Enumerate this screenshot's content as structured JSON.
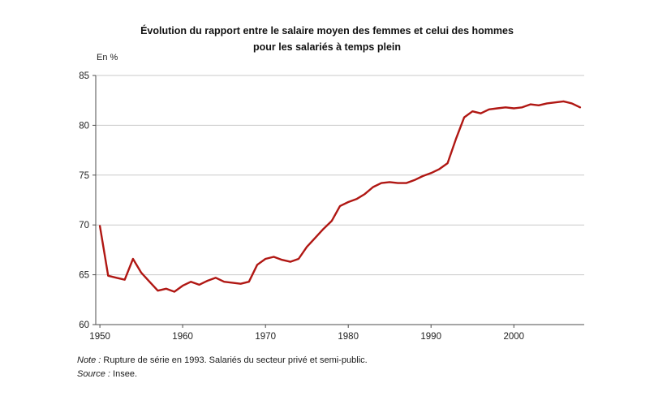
{
  "title": {
    "line1": "Évolution du rapport entre le salaire moyen des femmes et celui des hommes",
    "line2": "pour les salariés à temps plein"
  },
  "chart_data": {
    "type": "line",
    "title": "Évolution du rapport entre le salaire moyen des femmes et celui des hommes pour les salariés à temps plein",
    "unit_label": "En %",
    "ylabel": "En %",
    "xlabel": "",
    "ylim": [
      60,
      85
    ],
    "yticks": [
      60,
      65,
      70,
      75,
      80,
      85
    ],
    "xticks": [
      1950,
      1960,
      1970,
      1980,
      1990,
      2000
    ],
    "xlim": [
      1949.5,
      2008.5
    ],
    "grid": true,
    "legend_position": "none",
    "line_color": "#b01713",
    "axis_color": "#4d4d4d",
    "grid_color": "#c9c9c9",
    "x": [
      1950,
      1951,
      1952,
      1953,
      1954,
      1955,
      1956,
      1957,
      1958,
      1959,
      1960,
      1961,
      1962,
      1963,
      1964,
      1965,
      1966,
      1967,
      1968,
      1969,
      1970,
      1971,
      1972,
      1973,
      1974,
      1975,
      1976,
      1977,
      1978,
      1979,
      1980,
      1981,
      1982,
      1983,
      1984,
      1985,
      1986,
      1987,
      1988,
      1989,
      1990,
      1991,
      1992,
      1993,
      1994,
      1995,
      1996,
      1997,
      1998,
      1999,
      2000,
      2001,
      2002,
      2003,
      2004,
      2005,
      2006,
      2007,
      2008
    ],
    "values": [
      69.9,
      64.9,
      64.7,
      64.5,
      66.6,
      65.2,
      64.3,
      63.4,
      63.6,
      63.3,
      63.9,
      64.3,
      64.0,
      64.4,
      64.7,
      64.3,
      64.2,
      64.1,
      64.3,
      66.0,
      66.6,
      66.8,
      66.5,
      66.3,
      66.6,
      67.8,
      68.7,
      69.6,
      70.4,
      71.9,
      72.3,
      72.6,
      73.1,
      73.8,
      74.2,
      74.3,
      74.2,
      74.2,
      74.5,
      74.9,
      75.2,
      75.6,
      76.2,
      78.6,
      80.8,
      81.4,
      81.2,
      81.6,
      81.7,
      81.8,
      81.7,
      81.8,
      82.1,
      82.0,
      82.2,
      82.3,
      82.4,
      82.2,
      81.8
    ]
  },
  "footer": {
    "note_label": "Note :",
    "note_text": "Rupture de série en 1993. Salariés du secteur privé et semi-public.",
    "source_label": "Source :",
    "source_text": "Insee."
  }
}
